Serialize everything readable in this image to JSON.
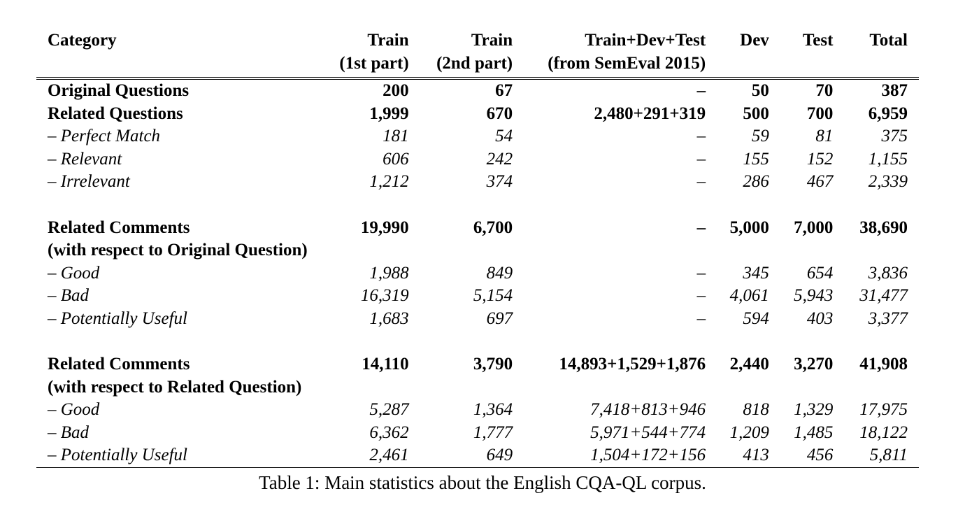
{
  "table": {
    "headers": {
      "category": "Category",
      "train1": [
        "Train",
        "(1st part)"
      ],
      "train2": [
        "Train",
        "(2nd part)"
      ],
      "semeval": [
        "Train+Dev+Test",
        "(from SemEval 2015)"
      ],
      "dev": "Dev",
      "test": "Test",
      "total": "Total"
    },
    "rows": [
      {
        "cells": [
          "Original Questions",
          "200",
          "67",
          "–",
          "50",
          "70",
          "387"
        ]
      },
      {
        "cells": [
          "Related Questions",
          "1,999",
          "670",
          "2,480+291+319",
          "500",
          "700",
          "6,959"
        ]
      },
      {
        "cells": [
          "– Perfect Match",
          "181",
          "54",
          "–",
          "59",
          "81",
          "375"
        ]
      },
      {
        "cells": [
          "– Relevant",
          "606",
          "242",
          "–",
          "155",
          "152",
          "1,155"
        ]
      },
      {
        "cells": [
          "– Irrelevant",
          "1,212",
          "374",
          "–",
          "286",
          "467",
          "2,339"
        ]
      },
      {
        "cells": [
          "Related Comments",
          "19,990",
          "6,700",
          "–",
          "5,000",
          "7,000",
          "38,690"
        ]
      },
      {
        "cells": [
          "(with respect to Original Question)"
        ]
      },
      {
        "cells": [
          "– Good",
          "1,988",
          "849",
          "–",
          "345",
          "654",
          "3,836"
        ]
      },
      {
        "cells": [
          "– Bad",
          "16,319",
          "5,154",
          "–",
          "4,061",
          "5,943",
          "31,477"
        ]
      },
      {
        "cells": [
          "– Potentially Useful",
          "1,683",
          "697",
          "–",
          "594",
          "403",
          "3,377"
        ]
      },
      {
        "cells": [
          "Related Comments",
          "14,110",
          "3,790",
          "14,893+1,529+1,876",
          "2,440",
          "3,270",
          "41,908"
        ]
      },
      {
        "cells": [
          "(with respect to Related Question)"
        ]
      },
      {
        "cells": [
          "– Good",
          "5,287",
          "1,364",
          "7,418+813+946",
          "818",
          "1,329",
          "17,975"
        ]
      },
      {
        "cells": [
          "– Bad",
          "6,362",
          "1,777",
          "5,971+544+774",
          "1,209",
          "1,485",
          "18,122"
        ]
      },
      {
        "cells": [
          "– Potentially Useful",
          "2,461",
          "649",
          "1,504+172+156",
          "413",
          "456",
          "5,811"
        ]
      }
    ]
  },
  "caption": "Table 1: Main statistics about the English CQA-QL corpus."
}
